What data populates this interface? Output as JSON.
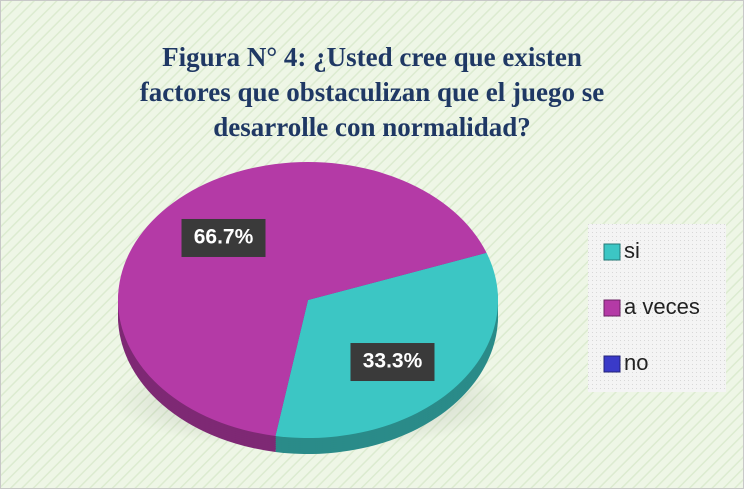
{
  "chart_data": {
    "type": "pie",
    "title": [
      "Figura N° 4: ¿Usted cree que existen",
      "factores que obstaculizan que el juego se",
      "desarrolle con normalidad?"
    ],
    "categories": [
      "si",
      "a veces",
      "no"
    ],
    "values": [
      33.3,
      66.7,
      0
    ],
    "value_labels": [
      "33.3%",
      "66.7%",
      null
    ],
    "colors": [
      "#3cc6c4",
      "#b43aa6",
      "#3a3ac8"
    ],
    "legend": "right"
  }
}
